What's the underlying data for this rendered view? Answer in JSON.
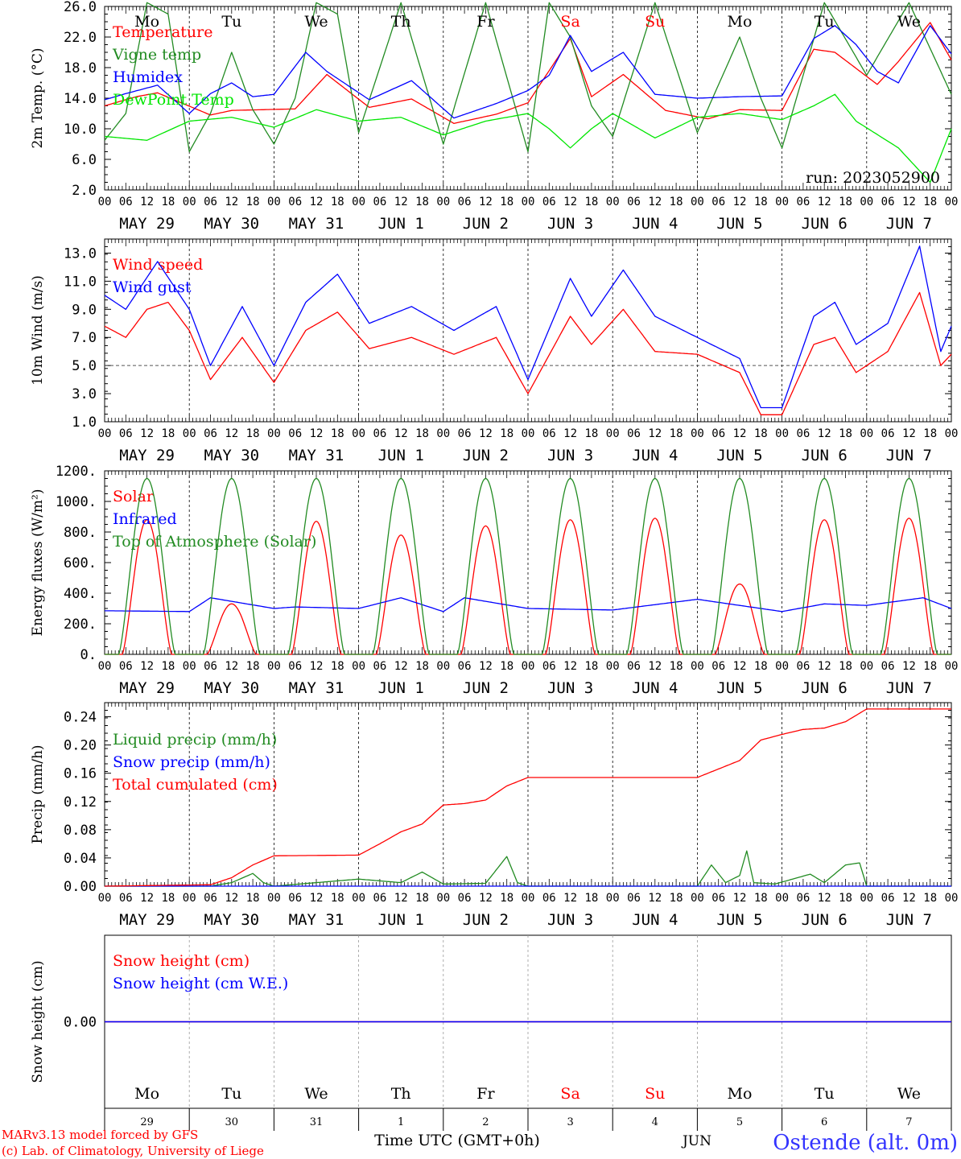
{
  "chart_data": {
    "type": "line",
    "time_axis": {
      "hour_labels": [
        "00",
        "06",
        "12",
        "18"
      ],
      "final_hour_label": "00",
      "date_labels": [
        "MAY 29",
        "MAY 30",
        "MAY 31",
        "JUN  1",
        "JUN  2",
        "JUN  3",
        "JUN  4",
        "JUN  5",
        "JUN  6",
        "JUN  7"
      ],
      "weekdays": [
        {
          "label": "Mo",
          "weekend": false
        },
        {
          "label": "Tu",
          "weekend": false
        },
        {
          "label": "We",
          "weekend": false
        },
        {
          "label": "Th",
          "weekend": false
        },
        {
          "label": "Fr",
          "weekend": false
        },
        {
          "label": "Sa",
          "weekend": true
        },
        {
          "label": "Su",
          "weekend": true
        },
        {
          "label": "Mo",
          "weekend": false
        },
        {
          "label": "Tu",
          "weekend": false
        },
        {
          "label": "We",
          "weekend": false
        }
      ],
      "day_numbers": [
        "29",
        "30",
        "31",
        "1",
        "2",
        "3",
        "4",
        "5",
        "6",
        "7"
      ],
      "month_label": "JUN",
      "xlabel": "Time UTC (GMT+0h)"
    },
    "panels": [
      {
        "ylabel": "2m Temp. (°C)",
        "ylim": [
          2.0,
          26.0
        ],
        "yticks": [
          "2.0",
          "6.0",
          "10.0",
          "14.0",
          "18.0",
          "22.0",
          "26.0"
        ],
        "annotation": "run: 2023052900",
        "series": [
          {
            "name": "Temperature",
            "color": "#ff0000",
            "hours": [
              0,
              9,
              15,
              30,
              36,
              54,
              63,
              75,
              87,
              99,
              111,
              120,
              132,
              138,
              147,
              159,
              171,
              180,
              192,
              201,
              207,
              219,
              225,
              234,
              240
            ],
            "values": [
              13.0,
              14.2,
              14.7,
              11.8,
              12.4,
              12.6,
              17.1,
              12.8,
              13.9,
              10.7,
              11.9,
              13.4,
              21.8,
              14.2,
              17.1,
              12.4,
              11.3,
              12.5,
              12.4,
              20.4,
              20.0,
              15.8,
              18.8,
              23.9,
              19.0
            ]
          },
          {
            "name": "Vigne temp",
            "color": "#228b22",
            "hours": [
              0,
              6,
              12,
              18,
              24,
              30,
              36,
              42,
              48,
              54,
              60,
              66,
              72,
              84,
              96,
              108,
              120,
              126,
              132,
              138,
              144,
              156,
              168,
              180,
              186,
              192,
              204,
              216,
              228,
              240
            ],
            "values": [
              8.5,
              12.0,
              26.5,
              25.0,
              7.0,
              12.0,
              20.0,
              12.5,
              8.0,
              14.0,
              26.5,
              25.0,
              9.5,
              26.5,
              8.0,
              26.5,
              7.0,
              26.5,
              22.0,
              13.0,
              9.0,
              26.5,
              9.5,
              22.0,
              14.0,
              7.5,
              26.5,
              17.0,
              26.5,
              14.5
            ]
          },
          {
            "name": "Humidex",
            "color": "#0000ff",
            "hours": [
              0,
              6,
              15,
              24,
              30,
              36,
              42,
              48,
              57,
              63,
              75,
              87,
              99,
              111,
              120,
              126,
              132,
              138,
              147,
              156,
              168,
              180,
              192,
              201,
              207,
              213,
              219,
              225,
              234,
              240
            ],
            "values": [
              13.8,
              14.6,
              15.7,
              12.0,
              14.6,
              16.0,
              14.2,
              14.5,
              20.0,
              17.5,
              13.8,
              16.3,
              11.4,
              13.3,
              15.0,
              17.0,
              22.2,
              17.5,
              20.0,
              14.5,
              14.0,
              14.2,
              14.3,
              21.8,
              23.5,
              21.0,
              17.5,
              16.0,
              23.5,
              19.8
            ]
          },
          {
            "name": "DewPoint Temp",
            "color": "#00e600",
            "hours": [
              0,
              12,
              24,
              36,
              48,
              60,
              72,
              84,
              96,
              108,
              120,
              126,
              132,
              138,
              144,
              156,
              168,
              180,
              192,
              201,
              207,
              213,
              225,
              234,
              240
            ],
            "values": [
              9.0,
              8.5,
              11.0,
              11.5,
              10.2,
              12.5,
              11.0,
              11.5,
              9.2,
              11.0,
              12.0,
              10.0,
              7.5,
              10.0,
              12.0,
              8.8,
              11.5,
              12.0,
              11.2,
              13.0,
              14.5,
              11.0,
              7.5,
              3.0,
              10.0
            ]
          }
        ]
      },
      {
        "ylabel": "10m Wind (m/s)",
        "ylim": [
          1.0,
          14.0
        ],
        "yticks": [
          "1.0",
          "3.0",
          "5.0",
          "7.0",
          "9.0",
          "11.0",
          "13.0"
        ],
        "reference_line": 5.0,
        "series": [
          {
            "name": "Wind speed",
            "color": "#ff0000",
            "hours": [
              0,
              6,
              12,
              18,
              24,
              30,
              39,
              48,
              57,
              66,
              75,
              87,
              99,
              111,
              120,
              132,
              138,
              147,
              156,
              168,
              180,
              186,
              192,
              201,
              207,
              213,
              222,
              231,
              237,
              240
            ],
            "values": [
              7.8,
              7.0,
              9.0,
              9.5,
              7.5,
              4.0,
              7.0,
              3.8,
              7.5,
              8.8,
              6.2,
              7.0,
              5.8,
              7.0,
              3.0,
              8.5,
              6.5,
              9.0,
              6.0,
              5.8,
              4.5,
              1.5,
              1.5,
              6.5,
              7.0,
              4.5,
              6.0,
              10.2,
              5.0,
              5.8
            ]
          },
          {
            "name": "Wind gust",
            "color": "#0000ff",
            "hours": [
              0,
              6,
              15,
              24,
              30,
              39,
              48,
              57,
              66,
              75,
              87,
              99,
              111,
              120,
              132,
              138,
              147,
              156,
              168,
              180,
              186,
              192,
              201,
              207,
              213,
              222,
              231,
              237,
              240
            ],
            "values": [
              10.0,
              9.0,
              12.4,
              9.0,
              5.0,
              9.2,
              5.0,
              9.5,
              11.5,
              8.0,
              9.2,
              7.5,
              9.2,
              4.0,
              11.2,
              8.5,
              11.8,
              8.5,
              7.0,
              5.5,
              2.0,
              2.0,
              8.5,
              9.5,
              6.5,
              8.0,
              13.5,
              6.0,
              7.8
            ]
          }
        ]
      },
      {
        "ylabel": "Energy fluxes (W/m²)",
        "ylim": [
          0,
          1200
        ],
        "yticks": [
          "0.",
          "200.",
          "400.",
          "600.",
          "800.",
          "1000.",
          "1200."
        ],
        "series": [
          {
            "name": "Solar",
            "color": "#ff0000",
            "daily_peaks": [
              880,
              330,
              870,
              780,
              840,
              880,
              890,
              460,
              880,
              890
            ]
          },
          {
            "name": "Infrared",
            "color": "#0000ff",
            "hours": [
              0,
              24,
              30,
              48,
              54,
              72,
              84,
              96,
              102,
              120,
              144,
              168,
              192,
              204,
              216,
              232,
              240
            ],
            "values": [
              285,
              280,
              370,
              300,
              310,
              300,
              370,
              280,
              370,
              300,
              290,
              360,
              280,
              330,
              320,
              370,
              300
            ]
          },
          {
            "name": "Top of Atmosphere (Solar)",
            "color": "#228b22",
            "daily_peaks": [
              1150,
              1150,
              1150,
              1150,
              1150,
              1150,
              1150,
              1150,
              1150,
              1150
            ]
          }
        ]
      },
      {
        "ylabel": "Precip (mm/h)",
        "ylim": [
          0.0,
          0.26
        ],
        "yticks": [
          "0.00",
          "0.04",
          "0.08",
          "0.12",
          "0.16",
          "0.20",
          "0.24"
        ],
        "series": [
          {
            "name": "Liquid precip (mm/h)",
            "color": "#228b22",
            "hours": [
              0,
              30,
              36,
              42,
              45,
              48,
              72,
              84,
              90,
              96,
              108,
              114,
              117,
              120,
              168,
              172,
              176,
              180,
              182,
              184,
              190,
              200,
              204,
              210,
              214,
              216,
              240
            ],
            "values": [
              0,
              0,
              0.005,
              0.018,
              0.005,
              0,
              0.01,
              0.005,
              0.02,
              0.003,
              0.004,
              0.042,
              0.005,
              0,
              0,
              0.03,
              0.005,
              0.015,
              0.05,
              0.005,
              0.003,
              0.017,
              0.005,
              0.03,
              0.033,
              0,
              0
            ]
          },
          {
            "name": "Snow precip (mm/h)",
            "color": "#0000ff",
            "hours": [
              0,
              240
            ],
            "values": [
              0,
              0
            ]
          },
          {
            "name": "Total cumulated (cm)",
            "color": "#ff0000",
            "hours": [
              0,
              30,
              36,
              42,
              48,
              72,
              78,
              84,
              90,
              96,
              102,
              108,
              114,
              120,
              168,
              174,
              180,
              186,
              192,
              198,
              204,
              210,
              216,
              240
            ],
            "values": [
              0,
              0.002,
              0.012,
              0.03,
              0.043,
              0.044,
              0.06,
              0.077,
              0.088,
              0.115,
              0.117,
              0.122,
              0.142,
              0.154,
              0.154,
              0.166,
              0.178,
              0.207,
              0.215,
              0.222,
              0.224,
              0.233,
              0.251,
              0.251
            ]
          }
        ]
      },
      {
        "ylabel": "Snow height (cm)",
        "ylim": [
          -1,
          1
        ],
        "yticks": [
          "0.00"
        ],
        "series": [
          {
            "name": "Snow height (cm)",
            "color": "#ff0000",
            "hours": [
              0,
              240
            ],
            "values": [
              0,
              0
            ]
          },
          {
            "name": "Snow height (cm W.E.)",
            "color": "#0000ff",
            "hours": [
              0,
              240
            ],
            "values": [
              0,
              0
            ]
          }
        ]
      }
    ],
    "footer": {
      "credit_line1": "MARv3.13 model forced by GFS",
      "credit_line2": "(c) Lab. of Climatology, University of Liege",
      "station": "Ostende (alt. 0m)"
    }
  }
}
